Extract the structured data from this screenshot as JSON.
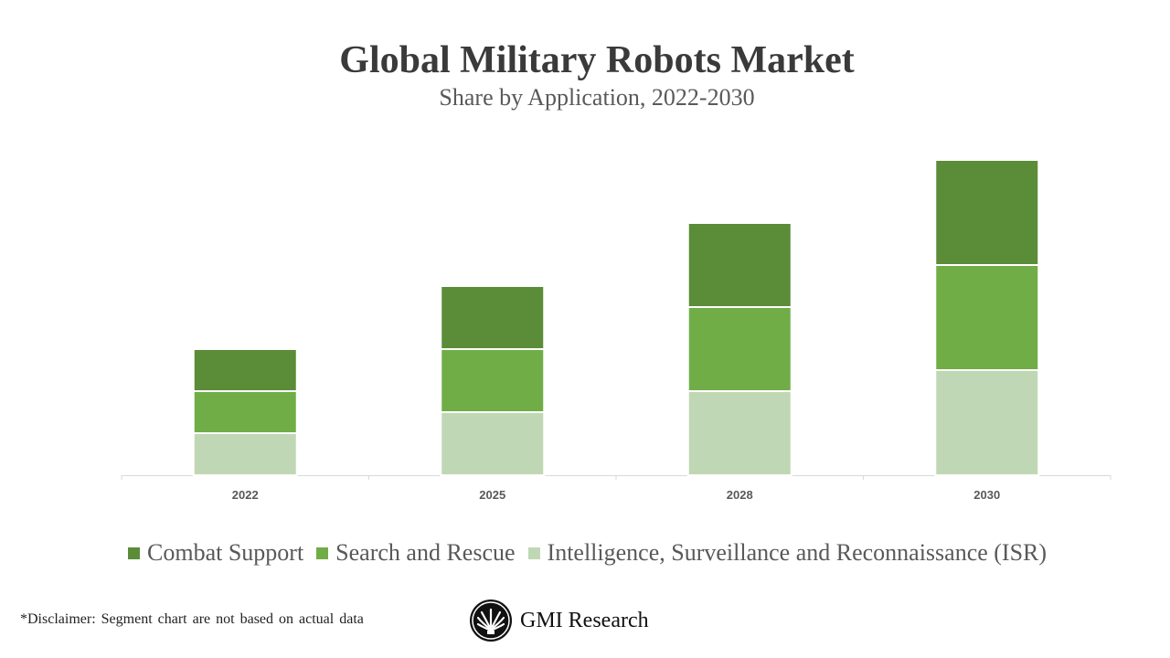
{
  "chart_data": {
    "type": "bar",
    "stacked": true,
    "title": "Global Military Robots Market",
    "subtitle": "Share by Application, 2022-2030",
    "categories": [
      "2022",
      "2025",
      "2028",
      "2030"
    ],
    "series": [
      {
        "name": "Intelligence, Surveillance and Reconnaissance (ISR)",
        "values": [
          2,
          3,
          4,
          5
        ],
        "color": "#c0d7b5"
      },
      {
        "name": "Search and Rescue",
        "values": [
          2,
          3,
          4,
          5
        ],
        "color": "#70ad47"
      },
      {
        "name": "Combat Support",
        "values": [
          2,
          3,
          4,
          5
        ],
        "color": "#5b8c37"
      }
    ],
    "legend_order": [
      "Combat Support",
      "Search and Rescue",
      "Intelligence, Surveillance and Reconnaissance (ISR)"
    ],
    "ylim": [
      0,
      15
    ],
    "y_axis_shown": false,
    "grid": false,
    "legend_position": "bottom",
    "xlabel": "",
    "ylabel": ""
  },
  "footer": {
    "disclaimer": "*Disclaimer:  Segment chart are not based on actual data",
    "brand": "GMI Research"
  }
}
